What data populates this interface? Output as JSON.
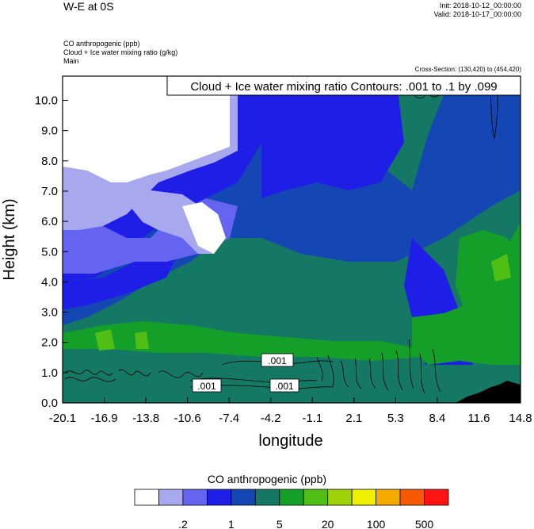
{
  "header": {
    "title": "W-E at 0S",
    "init": "Init: 2018-10-12_00:00:00",
    "valid": "Valid: 2018-10-17_00:00:00",
    "variables": [
      "CO anthropogenic   (ppb)",
      "Cloud + Ice water mixing ratio   (g/kg)",
      "Main"
    ],
    "cross_section": "Cross-Section: (130,420) to (454,420)"
  },
  "chart_data": {
    "type": "heatmap",
    "title": "W-E at 0S",
    "xlabel": "longitude",
    "ylabel": "Height (km)",
    "x_ticks": [
      "-20.1",
      "-16.9",
      "-13.8",
      "-10.6",
      "-7.4",
      "-4.2",
      "-1.1",
      "2.1",
      "5.3",
      "8.4",
      "11.6",
      "14.8"
    ],
    "y_ticks": [
      "0.0",
      "1.0",
      "2.0",
      "3.0",
      "4.0",
      "5.0",
      "6.0",
      "7.0",
      "8.0",
      "9.0",
      "10.0"
    ],
    "xlim": [
      -20.1,
      14.8
    ],
    "ylim": [
      0,
      10.8
    ],
    "contour_legend": "Cloud + Ice water mixing ratio Contours: .001 to .1 by .099",
    "contour_labels": [
      ".001",
      ".001",
      ".001"
    ],
    "colorbar": {
      "title": "CO anthropogenic  (ppb)",
      "colors": [
        "#ffffff",
        "#a8a8ee",
        "#6464f0",
        "#1e1ee6",
        "#1446b4",
        "#147864",
        "#14a028",
        "#50be14",
        "#a0d20a",
        "#f0f000",
        "#f5aa00",
        "#f55a00",
        "#ff1414"
      ],
      "labels": [
        ".2",
        "1",
        "5",
        "20",
        "100",
        "500"
      ]
    }
  }
}
